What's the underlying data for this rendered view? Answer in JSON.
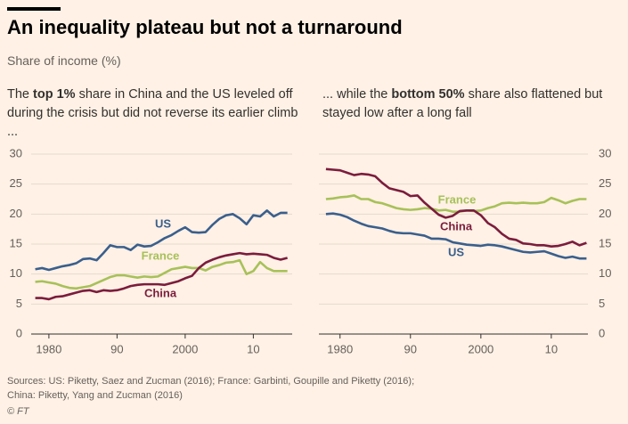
{
  "title": "An inequality plateau but not a turnaround",
  "subtitle": "Share of income (%)",
  "sources": [
    "Sources: US: Piketty, Saez and Zucman (2016); France: Garbinti, Goupille and Piketty (2016);",
    "China: Piketty, Yang and Zucman (2016)"
  ],
  "credit": "© FT",
  "chart_data": [
    {
      "type": "line",
      "title": [
        {
          "text": "The ",
          "bold": false
        },
        {
          "text": "top 1%",
          "bold": true
        },
        {
          "text": " share in China and the US leveled off during the crisis but did not reverse its earlier climb ...",
          "bold": false
        }
      ],
      "x": [
        1978,
        1979,
        1980,
        1981,
        1982,
        1983,
        1984,
        1985,
        1986,
        1987,
        1988,
        1989,
        1990,
        1991,
        1992,
        1993,
        1994,
        1995,
        1996,
        1997,
        1998,
        1999,
        2000,
        2001,
        2002,
        2003,
        2004,
        2005,
        2006,
        2007,
        2008,
        2009,
        2010,
        2011,
        2012,
        2013,
        2014,
        2015
      ],
      "xlim": [
        1977.4,
        2015.7
      ],
      "xticks": [
        1980,
        {
          "value": 1990,
          "label": "90"
        },
        2000,
        {
          "value": 2010,
          "label": "10"
        }
      ],
      "ylim": [
        0,
        30
      ],
      "yticks": [
        0,
        5,
        10,
        15,
        20,
        25,
        30
      ],
      "grid": true,
      "yaxis_position": "left",
      "series": [
        {
          "name": "US",
          "color": "#3a5f8d",
          "values": [
            10.8,
            11.0,
            10.7,
            11.0,
            11.3,
            11.5,
            11.8,
            12.5,
            12.6,
            12.3,
            13.5,
            14.8,
            14.5,
            14.5,
            14.0,
            14.9,
            14.6,
            14.7,
            15.3,
            16.0,
            16.5,
            17.2,
            17.8,
            17.0,
            16.9,
            17.0,
            18.2,
            19.2,
            19.8,
            20.0,
            19.3,
            18.3,
            19.8,
            19.6,
            20.6,
            19.6,
            20.2,
            20.2
          ]
        },
        {
          "name": "France",
          "color": "#a7c159",
          "values": [
            8.7,
            8.8,
            8.6,
            8.4,
            8.0,
            7.7,
            7.6,
            7.8,
            8.0,
            8.5,
            9.0,
            9.5,
            9.8,
            9.8,
            9.6,
            9.4,
            9.6,
            9.5,
            9.6,
            10.2,
            10.8,
            11.0,
            11.2,
            11.0,
            11.0,
            10.6,
            11.2,
            11.5,
            11.9,
            12.0,
            12.3,
            10.0,
            10.5,
            12.0,
            11.0,
            10.5,
            10.5,
            10.5
          ]
        },
        {
          "name": "China",
          "color": "#7b1c3d",
          "values": [
            6.0,
            6.0,
            5.8,
            6.2,
            6.3,
            6.6,
            6.9,
            7.2,
            7.3,
            7.0,
            7.3,
            7.2,
            7.3,
            7.6,
            8.0,
            8.2,
            8.3,
            8.3,
            8.3,
            8.2,
            8.5,
            8.8,
            9.3,
            9.7,
            11.0,
            11.9,
            12.4,
            12.8,
            13.1,
            13.3,
            13.5,
            13.3,
            13.4,
            13.3,
            13.2,
            12.7,
            12.4,
            12.7
          ]
        }
      ]
    },
    {
      "type": "line",
      "title": [
        {
          "text": "... while the ",
          "bold": false
        },
        {
          "text": "bottom 50%",
          "bold": true
        },
        {
          "text": " share also flattened but stayed low after a long fall",
          "bold": false
        }
      ],
      "x": [
        1978,
        1979,
        1980,
        1981,
        1982,
        1983,
        1984,
        1985,
        1986,
        1987,
        1988,
        1989,
        1990,
        1991,
        1992,
        1993,
        1994,
        1995,
        1996,
        1997,
        1998,
        1999,
        2000,
        2001,
        2002,
        2003,
        2004,
        2005,
        2006,
        2007,
        2008,
        2009,
        2010,
        2011,
        2012,
        2013,
        2014,
        2015
      ],
      "xlim": [
        1977,
        2015.2
      ],
      "xticks": [
        1980,
        {
          "value": 1990,
          "label": "90"
        },
        2000,
        {
          "value": 2010,
          "label": "10"
        }
      ],
      "ylim": [
        0,
        30
      ],
      "yticks": [
        0,
        5,
        10,
        15,
        20,
        25,
        30
      ],
      "grid": true,
      "yaxis_position": "right",
      "series": [
        {
          "name": "France",
          "color": "#a7c159",
          "values": [
            22.5,
            22.6,
            22.8,
            22.9,
            23.1,
            22.5,
            22.5,
            22.0,
            21.8,
            21.4,
            21.0,
            20.8,
            20.7,
            20.8,
            21.0,
            20.9,
            20.6,
            20.7,
            20.4,
            20.4,
            20.6,
            20.5,
            20.6,
            21.0,
            21.3,
            21.8,
            21.9,
            21.8,
            21.9,
            21.8,
            21.8,
            22.0,
            22.7,
            22.3,
            21.8,
            22.2,
            22.5,
            22.5
          ]
        },
        {
          "name": "China",
          "color": "#7b1c3d",
          "values": [
            27.5,
            27.4,
            27.3,
            26.9,
            26.5,
            26.7,
            26.6,
            26.3,
            25.2,
            24.3,
            24.0,
            23.7,
            23.0,
            23.1,
            21.9,
            20.9,
            19.9,
            19.4,
            19.7,
            20.5,
            20.6,
            20.6,
            19.8,
            18.5,
            17.8,
            16.7,
            15.9,
            15.7,
            15.1,
            15.0,
            14.8,
            14.8,
            14.6,
            14.7,
            15.0,
            15.4,
            14.8,
            15.2
          ]
        },
        {
          "name": "US",
          "color": "#3a5f8d",
          "values": [
            20.0,
            20.1,
            19.9,
            19.5,
            18.9,
            18.4,
            18.0,
            17.8,
            17.6,
            17.2,
            16.9,
            16.8,
            16.8,
            16.6,
            16.4,
            15.9,
            15.9,
            15.8,
            15.3,
            15.1,
            14.9,
            14.8,
            14.7,
            14.9,
            14.8,
            14.6,
            14.3,
            14.0,
            13.7,
            13.6,
            13.7,
            13.8,
            13.4,
            13.0,
            12.7,
            12.9,
            12.6,
            12.6
          ]
        }
      ]
    }
  ]
}
